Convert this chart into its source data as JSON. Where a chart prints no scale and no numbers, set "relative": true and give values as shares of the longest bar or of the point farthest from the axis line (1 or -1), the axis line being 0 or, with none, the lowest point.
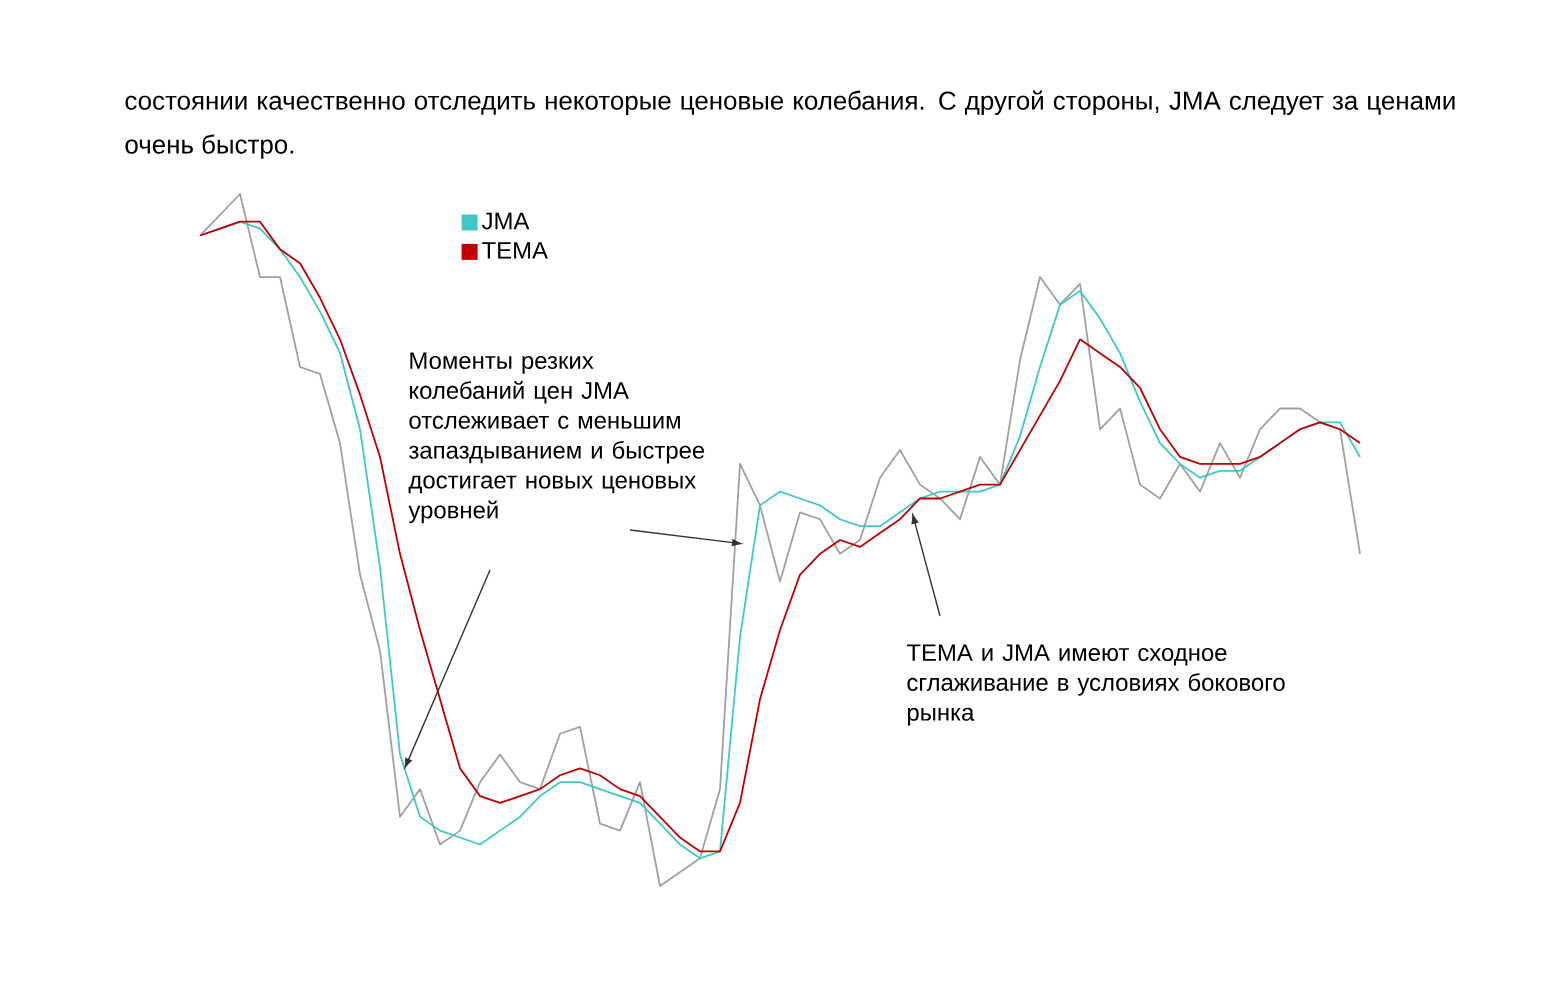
{
  "chart_data": {
    "type": "line",
    "relative": true,
    "legend": "top left",
    "annotations": [
      "состоянии качественно отследить некоторые ценовые колебания. С другой стороны, JMA следует за ценами очень быстро.",
      "Моменты резких колебаний цен JMA отслеживает с меньшим запаздыванием и быстрее достигает новых ценовых уровней",
      "TEMA и JMA имеют сходное сглаживание в условиях бокового рынка"
    ],
    "categories": [
      null,
      null,
      null,
      null,
      null,
      null,
      null,
      null,
      null,
      null,
      null,
      null,
      null,
      null,
      null,
      null,
      null,
      null,
      null,
      null,
      null,
      null,
      null,
      null,
      null,
      null,
      null,
      null,
      null,
      null,
      null,
      null,
      null,
      null,
      null,
      null,
      null,
      null,
      null,
      null,
      null,
      null,
      null,
      null,
      null,
      null,
      null,
      null,
      null,
      null,
      null,
      null,
      null,
      null,
      null,
      null,
      null,
      null,
      null
    ],
    "series": [
      {
        "color": "#a0a0a0",
        "values": [
          0.94,
          0.97,
          1.0,
          0.88,
          0.88,
          0.75,
          0.74,
          0.64,
          0.45,
          0.34,
          0.1,
          0.14,
          0.06,
          0.08,
          0.15,
          0.19,
          0.15,
          0.14,
          0.22,
          0.23,
          0.09,
          0.08,
          0.15,
          0.0,
          0.02,
          0.04,
          0.14,
          0.61,
          0.55,
          0.44,
          0.54,
          0.53,
          0.48,
          0.5,
          0.59,
          0.63,
          0.58,
          0.56,
          0.53,
          0.62,
          0.58,
          0.76,
          0.88,
          0.84,
          0.87,
          0.66,
          0.69,
          0.58,
          0.56,
          0.61,
          0.57,
          0.64,
          0.59,
          0.66,
          0.69,
          0.69,
          0.67,
          0.66,
          0.48
        ]
      },
      {
        "name": "JMA",
        "color": "#40c8c8",
        "values": [
          0.94,
          0.95,
          0.96,
          0.95,
          0.92,
          0.88,
          0.83,
          0.77,
          0.66,
          0.46,
          0.19,
          0.1,
          0.08,
          0.07,
          0.06,
          0.08,
          0.1,
          0.13,
          0.15,
          0.15,
          0.14,
          0.13,
          0.12,
          0.09,
          0.06,
          0.04,
          0.05,
          0.36,
          0.55,
          0.57,
          0.56,
          0.55,
          0.53,
          0.52,
          0.52,
          0.54,
          0.56,
          0.57,
          0.57,
          0.57,
          0.58,
          0.65,
          0.75,
          0.84,
          0.86,
          0.82,
          0.77,
          0.7,
          0.64,
          0.61,
          0.59,
          0.6,
          0.6,
          0.62,
          0.64,
          0.66,
          0.67,
          0.67,
          0.62
        ]
      },
      {
        "name": "TEMA",
        "color": "#c00000",
        "values": [
          0.94,
          0.95,
          0.96,
          0.96,
          0.92,
          0.9,
          0.85,
          0.79,
          0.71,
          0.62,
          0.48,
          0.37,
          0.27,
          0.17,
          0.13,
          0.12,
          0.13,
          0.14,
          0.16,
          0.17,
          0.16,
          0.14,
          0.13,
          0.1,
          0.07,
          0.05,
          0.05,
          0.12,
          0.27,
          0.37,
          0.45,
          0.48,
          0.5,
          0.49,
          0.51,
          0.53,
          0.56,
          0.56,
          0.57,
          0.58,
          0.58,
          0.63,
          0.68,
          0.73,
          0.79,
          0.77,
          0.75,
          0.72,
          0.66,
          0.62,
          0.61,
          0.61,
          0.61,
          0.62,
          0.64,
          0.66,
          0.67,
          0.66,
          0.64
        ]
      }
    ]
  }
}
